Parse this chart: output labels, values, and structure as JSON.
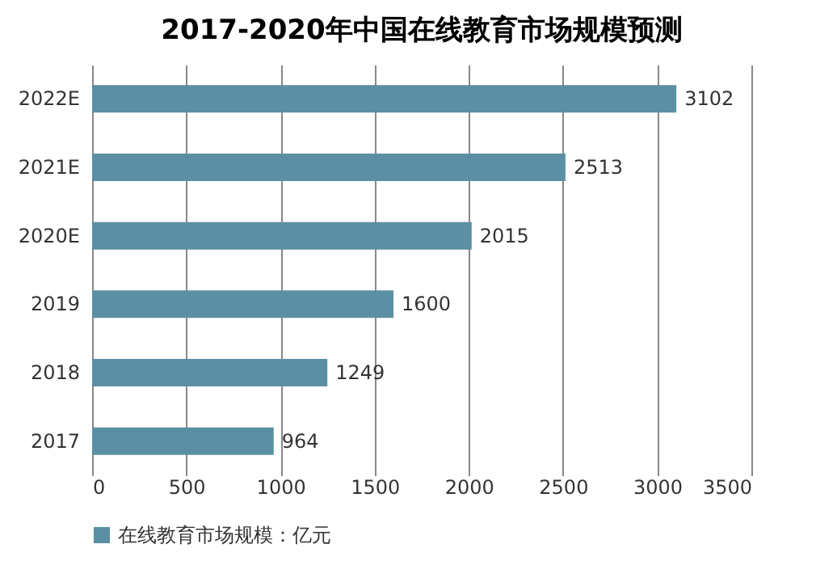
{
  "chart_data": {
    "type": "bar",
    "orientation": "horizontal",
    "title": "2017-2020年中国在线教育市场规模预测",
    "categories": [
      "2022E",
      "2021E",
      "2020E",
      "2019",
      "2018",
      "2017"
    ],
    "series": [
      {
        "name": "在线教育市场规模：亿元",
        "color": "#5b8fa3",
        "values": [
          3102,
          2513,
          2015,
          1600,
          1249,
          964
        ]
      }
    ],
    "xlim": [
      0,
      3500
    ],
    "xticks": [
      0,
      500,
      1000,
      1500,
      2000,
      2500,
      3000,
      3500
    ],
    "grid": "x",
    "legend": "bottom",
    "data_labels": true
  }
}
